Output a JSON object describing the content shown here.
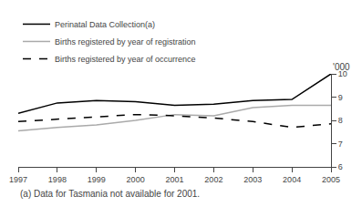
{
  "chart_data": {
    "type": "line",
    "x": [
      1997,
      1998,
      1999,
      2000,
      2001,
      2002,
      2003,
      2004,
      2005
    ],
    "series": [
      {
        "name": "Perinatal Data Collection(a)",
        "color": "#000000",
        "line_style": "solid",
        "values": [
          8.3,
          8.75,
          8.85,
          8.8,
          8.65,
          8.7,
          8.85,
          8.9,
          10.0
        ]
      },
      {
        "name": "Births registered by year of registration",
        "color": "#aaaaaa",
        "line_style": "solid",
        "values": [
          7.55,
          7.7,
          7.8,
          8.0,
          8.25,
          8.2,
          8.55,
          8.65,
          8.65
        ]
      },
      {
        "name": "Births registered by year of occurrence",
        "color": "#000000",
        "line_style": "dash",
        "values": [
          7.95,
          8.05,
          8.15,
          8.25,
          8.2,
          8.1,
          7.95,
          7.7,
          7.85
        ]
      }
    ],
    "xlim": [
      1997,
      2005
    ],
    "xticks": [
      1997,
      1998,
      1999,
      2000,
      2001,
      2002,
      2003,
      2004,
      2005
    ],
    "ylim": [
      6,
      10
    ],
    "yticks": [
      6,
      7,
      8,
      9,
      10
    ],
    "y_label": "'000",
    "annotations": [
      "(a) Data for Tasmania not available for 2001."
    ],
    "grid": false,
    "legend": "top"
  }
}
